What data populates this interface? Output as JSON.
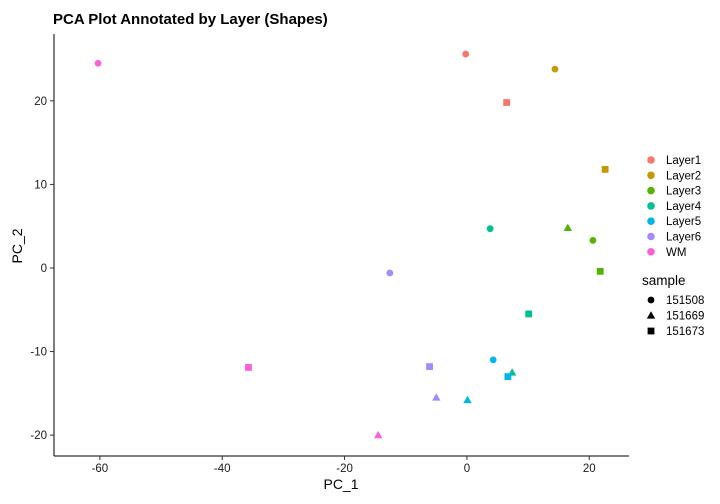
{
  "chart_data": {
    "type": "scatter",
    "title": "PCA Plot Annotated by Layer (Shapes)",
    "xlabel": "PC_1",
    "ylabel": "PC_2",
    "xlim": [
      -67.5,
      26.5
    ],
    "ylim": [
      -22.5,
      28
    ],
    "xticks": [
      -60,
      -40,
      -20,
      0,
      20
    ],
    "yticks": [
      -20,
      -10,
      0,
      10,
      20
    ],
    "grid": false,
    "legend_placement": "right",
    "color_legend": {
      "items": [
        {
          "label": "Layer1",
          "color": "#F8766D"
        },
        {
          "label": "Layer2",
          "color": "#C49A00"
        },
        {
          "label": "Layer3",
          "color": "#53B400"
        },
        {
          "label": "Layer4",
          "color": "#00C094"
        },
        {
          "label": "Layer5",
          "color": "#00B6EB"
        },
        {
          "label": "Layer6",
          "color": "#A58AFF"
        },
        {
          "label": "WM",
          "color": "#FB61D7"
        }
      ]
    },
    "shape_legend": {
      "title": "sample",
      "items": [
        {
          "label": "151508",
          "shape": "circle"
        },
        {
          "label": "151669",
          "shape": "triangle"
        },
        {
          "label": "151673",
          "shape": "square"
        }
      ]
    },
    "points": [
      {
        "layer": "Layer1",
        "sample": "151508",
        "x": -0.2,
        "y": 25.6
      },
      {
        "layer": "Layer2",
        "sample": "151508",
        "x": 14.4,
        "y": 23.8
      },
      {
        "layer": "Layer1",
        "sample": "151673",
        "x": 6.5,
        "y": 19.8
      },
      {
        "layer": "WM",
        "sample": "151508",
        "x": -60.3,
        "y": 24.5
      },
      {
        "layer": "Layer2",
        "sample": "151673",
        "x": 22.6,
        "y": 11.8
      },
      {
        "layer": "Layer4",
        "sample": "151508",
        "x": 3.8,
        "y": 4.7
      },
      {
        "layer": "Layer3",
        "sample": "151669",
        "x": 16.5,
        "y": 4.8
      },
      {
        "layer": "Layer3",
        "sample": "151508",
        "x": 20.6,
        "y": 3.3
      },
      {
        "layer": "Layer3",
        "sample": "151673",
        "x": 21.8,
        "y": -0.4
      },
      {
        "layer": "Layer6",
        "sample": "151508",
        "x": -12.6,
        "y": -0.6
      },
      {
        "layer": "Layer4",
        "sample": "151673",
        "x": 10.1,
        "y": -5.5
      },
      {
        "layer": "Layer5",
        "sample": "151508",
        "x": 4.3,
        "y": -11.0
      },
      {
        "layer": "Layer6",
        "sample": "151673",
        "x": -6.1,
        "y": -11.8
      },
      {
        "layer": "WM",
        "sample": "151673",
        "x": -35.7,
        "y": -11.9
      },
      {
        "layer": "Layer4",
        "sample": "151669",
        "x": 7.4,
        "y": -12.5
      },
      {
        "layer": "Layer5",
        "sample": "151673",
        "x": 6.7,
        "y": -13.0
      },
      {
        "layer": "Layer6",
        "sample": "151669",
        "x": -5.0,
        "y": -15.5
      },
      {
        "layer": "Layer5",
        "sample": "151669",
        "x": 0.1,
        "y": -15.8
      },
      {
        "layer": "WM",
        "sample": "151669",
        "x": -14.5,
        "y": -20.0
      }
    ]
  }
}
